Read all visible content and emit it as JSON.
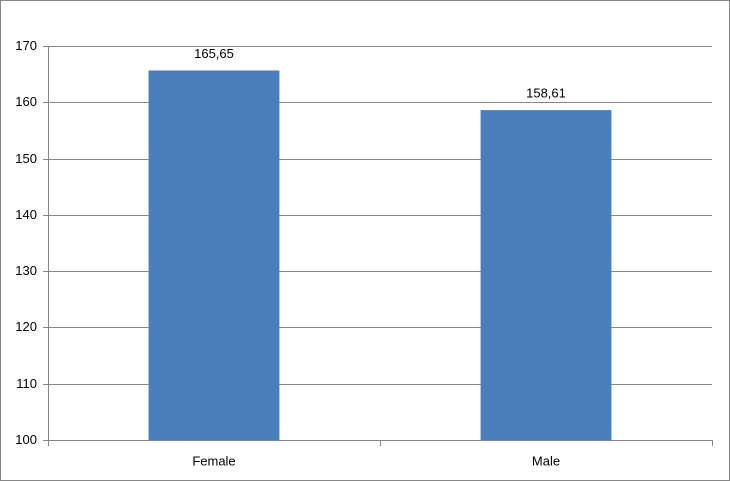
{
  "chart_data": {
    "type": "bar",
    "categories": [
      "Female",
      "Male"
    ],
    "values": [
      165.65,
      158.61
    ],
    "value_labels": [
      "165,65",
      "158,61"
    ],
    "color": "#4a7ebb",
    "ylim": [
      100,
      170
    ],
    "yticks": [
      100,
      110,
      120,
      130,
      140,
      150,
      160,
      170
    ],
    "grid": true
  }
}
